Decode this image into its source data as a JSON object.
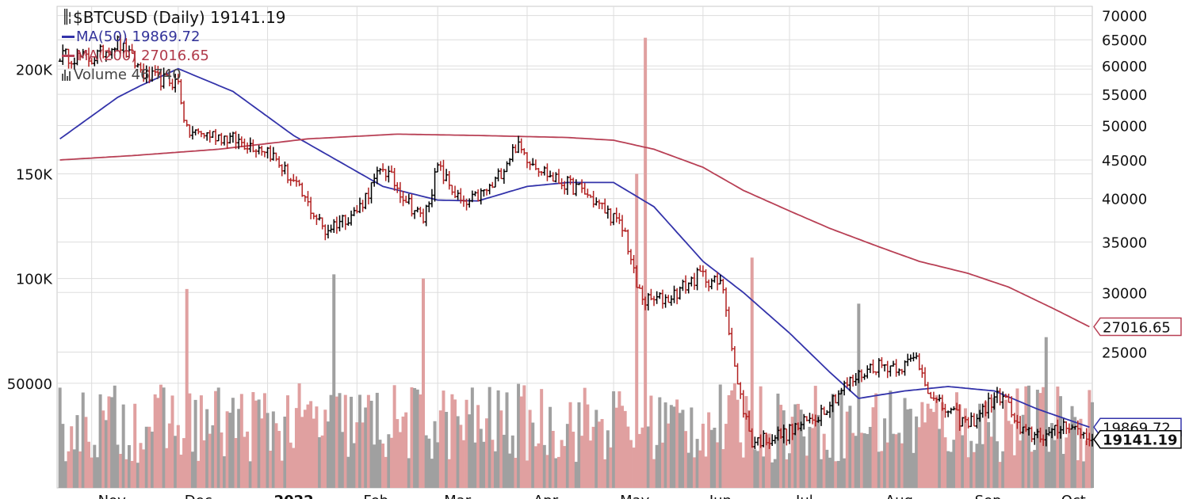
{
  "legend": {
    "title": "$BTCUSD (Daily) 19141.19",
    "ma50": "MA(50) 19869.72",
    "ma200": "MA(200) 27016.65",
    "volume": "Volume 46,740"
  },
  "chart_data": {
    "type": "line",
    "title": "$BTCUSD (Daily)",
    "price_axis": {
      "scale": "log",
      "ylim": [
        16500,
        72000
      ],
      "ticks": [
        25000,
        30000,
        35000,
        40000,
        45000,
        50000,
        55000,
        60000,
        65000,
        70000
      ]
    },
    "volume_axis": {
      "ylim": [
        0,
        230000
      ],
      "ticks": [
        50000,
        100000,
        150000,
        200000
      ],
      "tick_labels": [
        "50000",
        "100K",
        "150K",
        "200K"
      ]
    },
    "x_months": [
      "Nov",
      "Dec",
      "2022",
      "Feb",
      "Mar",
      "Apr",
      "May",
      "Jun",
      "Jul",
      "Aug",
      "Sep",
      "Oct"
    ],
    "grid": true,
    "legend_position": "top-left",
    "colors": {
      "up": "#000000",
      "down": "#b22222",
      "ma50": "#3333aa",
      "ma200": "#b84055",
      "volume_up": "#a0a0a0",
      "volume_down": "#e0a0a0",
      "grid": "#dddddd"
    },
    "series": [
      {
        "name": "$BTCUSD",
        "date": [
          "2021-10-21",
          "2021-11-01",
          "2021-11-10",
          "2021-11-20",
          "2021-12-01",
          "2021-12-04",
          "2021-12-15",
          "2022-01-01",
          "2022-01-10",
          "2022-01-21",
          "2022-01-24",
          "2022-02-01",
          "2022-02-10",
          "2022-02-20",
          "2022-02-24",
          "2022-03-01",
          "2022-03-10",
          "2022-03-20",
          "2022-03-28",
          "2022-04-01",
          "2022-04-10",
          "2022-04-20",
          "2022-04-30",
          "2022-05-05",
          "2022-05-09",
          "2022-05-12",
          "2022-05-20",
          "2022-05-31",
          "2022-06-08",
          "2022-06-13",
          "2022-06-18",
          "2022-06-30",
          "2022-07-10",
          "2022-07-20",
          "2022-07-30",
          "2022-08-10",
          "2022-08-14",
          "2022-08-20",
          "2022-09-01",
          "2022-09-09",
          "2022-09-13",
          "2022-09-19",
          "2022-09-30",
          "2022-10-05",
          "2022-10-13"
        ],
        "values": [
          62000,
          61300,
          64500,
          58000,
          57000,
          49000,
          48500,
          46500,
          42000,
          36200,
          37000,
          38500,
          44000,
          39000,
          37500,
          44000,
          39000,
          41500,
          47000,
          45500,
          42500,
          41000,
          38000,
          36000,
          30500,
          29200,
          29500,
          31700,
          30500,
          22500,
          19000,
          19500,
          20500,
          22500,
          24000,
          24000,
          24600,
          21500,
          20000,
          21500,
          22000,
          19500,
          19400,
          20200,
          19141.19
        ]
      },
      {
        "name": "MA(50)",
        "date": [
          "2021-10-21",
          "2021-11-10",
          "2021-11-18",
          "2021-12-01",
          "2021-12-20",
          "2022-01-10",
          "2022-02-10",
          "2022-03-01",
          "2022-03-15",
          "2022-04-01",
          "2022-04-15",
          "2022-05-01",
          "2022-05-15",
          "2022-06-01",
          "2022-06-15",
          "2022-07-01",
          "2022-07-15",
          "2022-07-25",
          "2022-08-10",
          "2022-08-25",
          "2022-09-10",
          "2022-09-25",
          "2022-10-13"
        ],
        "values": [
          48000,
          54500,
          56500,
          59500,
          55500,
          48500,
          41500,
          39800,
          39700,
          41500,
          42000,
          42000,
          39000,
          33000,
          30000,
          26500,
          23500,
          21700,
          22200,
          22500,
          22200,
          21000,
          19869.72
        ]
      },
      {
        "name": "MA(200)",
        "date": [
          "2021-10-21",
          "2021-11-15",
          "2021-12-15",
          "2022-01-15",
          "2022-02-15",
          "2022-03-15",
          "2022-04-15",
          "2022-05-01",
          "2022-05-15",
          "2022-06-01",
          "2022-06-15",
          "2022-07-01",
          "2022-07-15",
          "2022-08-01",
          "2022-08-15",
          "2022-09-01",
          "2022-09-15",
          "2022-10-01",
          "2022-10-13"
        ],
        "values": [
          45000,
          45600,
          46500,
          48000,
          48700,
          48500,
          48200,
          47800,
          46500,
          44000,
          41000,
          38500,
          36500,
          34500,
          33000,
          31800,
          30500,
          28500,
          27016.65
        ]
      }
    ],
    "volume_peaks": [
      {
        "date": "2021-12-04",
        "value": 95000
      },
      {
        "date": "2022-01-24",
        "value": 102000
      },
      {
        "date": "2022-02-24",
        "value": 100000
      },
      {
        "date": "2022-05-09",
        "value": 150000
      },
      {
        "date": "2022-05-12",
        "value": 215000
      },
      {
        "date": "2022-06-18",
        "value": 110000
      },
      {
        "date": "2022-07-25",
        "value": 88000
      },
      {
        "date": "2022-09-28",
        "value": 72000
      },
      {
        "date": "2022-10-13",
        "value": 46740
      }
    ],
    "last_price_label": "19141.19",
    "ma50_label": "19869.72",
    "ma200_label": "27016.65"
  }
}
